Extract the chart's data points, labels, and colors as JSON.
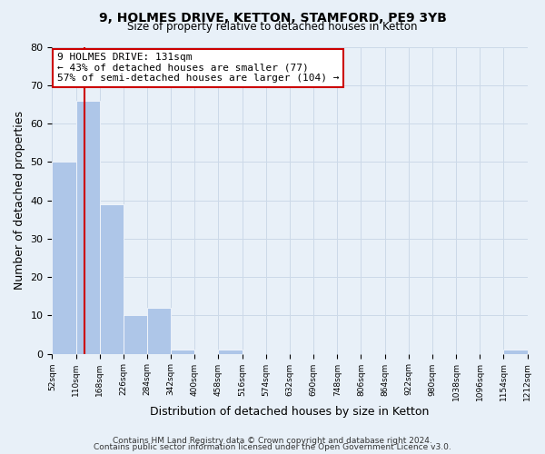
{
  "title": "9, HOLMES DRIVE, KETTON, STAMFORD, PE9 3YB",
  "subtitle": "Size of property relative to detached houses in Ketton",
  "xlabel": "Distribution of detached houses by size in Ketton",
  "ylabel": "Number of detached properties",
  "bin_edges": [
    52,
    110,
    168,
    226,
    284,
    342,
    400,
    458,
    516,
    574,
    632,
    690,
    748,
    806,
    864,
    922,
    980,
    1038,
    1096,
    1154,
    1212
  ],
  "counts": [
    50,
    66,
    39,
    10,
    12,
    1,
    0,
    1,
    0,
    0,
    0,
    0,
    0,
    0,
    0,
    0,
    0,
    0,
    0,
    1
  ],
  "bar_color": "#aec6e8",
  "bar_edge_color": "#aec6e8",
  "vline_x": 131,
  "vline_color": "#cc0000",
  "annotation_text": "9 HOLMES DRIVE: 131sqm\n← 43% of detached houses are smaller (77)\n57% of semi-detached houses are larger (104) →",
  "annotation_box_facecolor": "#ffffff",
  "annotation_box_edgecolor": "#cc0000",
  "ylim": [
    0,
    80
  ],
  "yticks": [
    0,
    10,
    20,
    30,
    40,
    50,
    60,
    70,
    80
  ],
  "tick_labels": [
    "52sqm",
    "110sqm",
    "168sqm",
    "226sqm",
    "284sqm",
    "342sqm",
    "400sqm",
    "458sqm",
    "516sqm",
    "574sqm",
    "632sqm",
    "690sqm",
    "748sqm",
    "806sqm",
    "864sqm",
    "922sqm",
    "980sqm",
    "1038sqm",
    "1096sqm",
    "1154sqm",
    "1212sqm"
  ],
  "grid_color": "#ccd9e8",
  "bg_color": "#e8f0f8",
  "footer1": "Contains HM Land Registry data © Crown copyright and database right 2024.",
  "footer2": "Contains public sector information licensed under the Open Government Licence v3.0."
}
